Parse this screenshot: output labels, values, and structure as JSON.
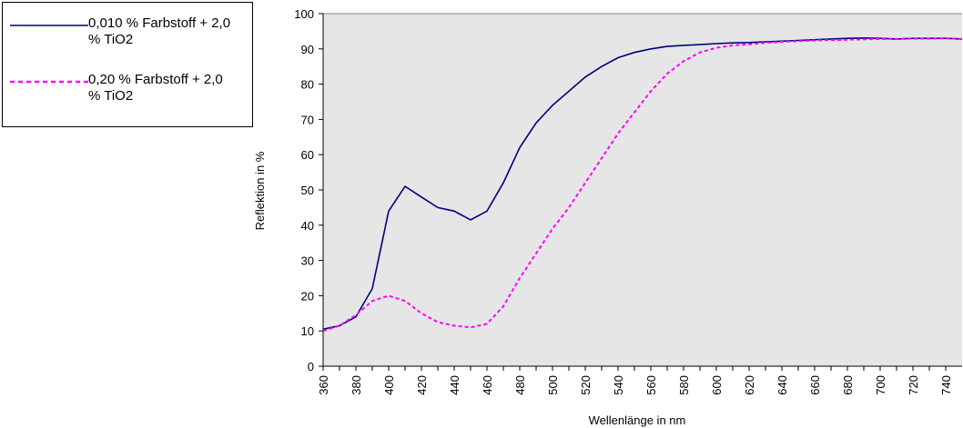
{
  "chart_data": {
    "type": "line",
    "xlabel": "Wellenlänge in nm",
    "ylabel": "Reflektion in %",
    "x": [
      360,
      370,
      380,
      390,
      400,
      410,
      420,
      430,
      440,
      450,
      460,
      470,
      480,
      490,
      500,
      510,
      520,
      530,
      540,
      550,
      560,
      570,
      580,
      590,
      600,
      610,
      620,
      630,
      640,
      650,
      660,
      670,
      680,
      690,
      700,
      710,
      720,
      730,
      740,
      750
    ],
    "series": [
      {
        "name": "0,010 % Farbstoff + 2,0 % TiO2",
        "color": "#000080",
        "dash": false,
        "values": [
          10.5,
          11.5,
          14,
          22,
          44,
          51,
          48,
          45,
          44,
          41.5,
          44,
          52,
          62,
          69,
          74,
          78,
          82,
          85,
          87.5,
          89,
          90,
          90.7,
          91,
          91.2,
          91.5,
          91.7,
          91.8,
          92,
          92.2,
          92.4,
          92.6,
          92.8,
          93,
          93.1,
          93,
          92.8,
          93,
          93,
          93,
          92.8
        ]
      },
      {
        "name": "0,20 % Farbstoff + 2,0 % TiO2",
        "color": "#ff00ff",
        "dash": true,
        "values": [
          10,
          11.5,
          14.5,
          18.5,
          20,
          18.5,
          15,
          12.5,
          11.5,
          11,
          12,
          17,
          25,
          32,
          39,
          45,
          52,
          59,
          66,
          72,
          78,
          83,
          86.5,
          89,
          90.3,
          91,
          91.3,
          91.7,
          92,
          92.2,
          92.4,
          92.5,
          92.6,
          92.7,
          92.8,
          92.8,
          92.9,
          92.9,
          93,
          92.8
        ]
      }
    ],
    "xlim": [
      360,
      750
    ],
    "xticks": [
      360,
      380,
      400,
      420,
      440,
      460,
      480,
      500,
      520,
      540,
      560,
      580,
      600,
      620,
      640,
      660,
      680,
      700,
      720,
      740
    ],
    "ylim": [
      0,
      100
    ],
    "yticks": [
      0,
      10,
      20,
      30,
      40,
      50,
      60,
      70,
      80,
      90,
      100
    ],
    "legend": "top-left",
    "plot_background": "#e6e6e6"
  }
}
